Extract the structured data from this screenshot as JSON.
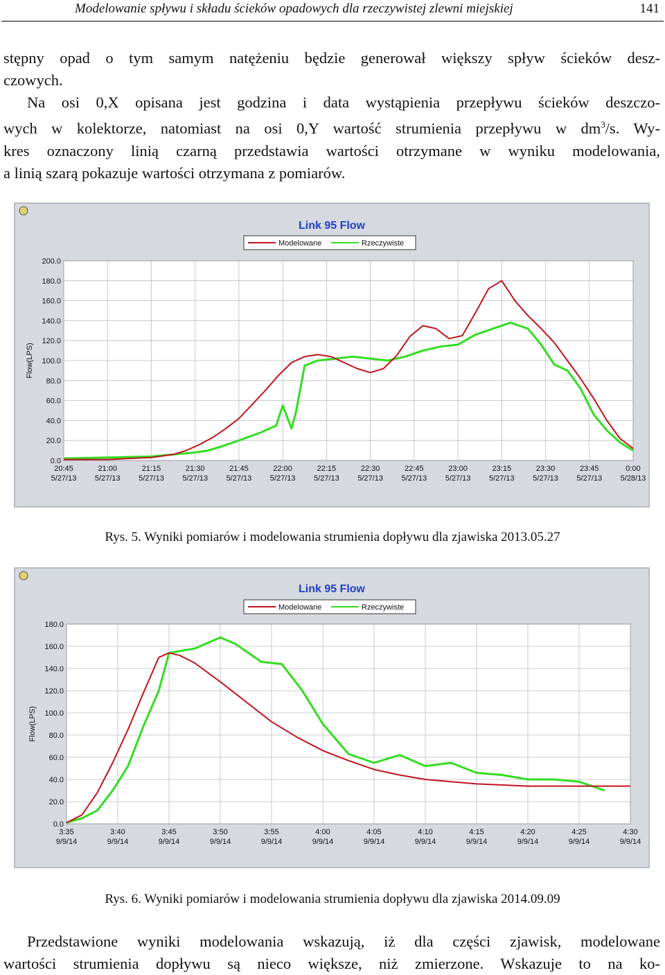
{
  "header": {
    "running_title": "Modelowanie spływu i składu ścieków opadowych dla rzeczywistej zlewni miejskiej",
    "page_number": "141"
  },
  "intro": {
    "lines": [
      "stępny opad o tym samym natężeniu będzie generował większy spływ ścieków desz-",
      "czowych."
    ],
    "para2_lines": [
      "Na osi 0,X opisana jest godzina i data wystąpienia przepływu ścieków deszczo-",
      "wych w kolektorze, natomiast na osi 0,Y wartość strumienia przepływu w dm",
      "/s. Wy-",
      "kres oznaczony linią czarną przedstawia wartości otrzymane w wyniku modelowania,",
      "a linią szarą pokazuje wartości otrzymana z pomiarów."
    ],
    "superscript": "3"
  },
  "figures": [
    {
      "caption": "Rys. 5. Wyniki pomiarów i modelowania strumienia dopływu dla zjawiska 2013.05.27",
      "chart_data": {
        "type": "line",
        "title": "Link 95 Flow",
        "ylabel": "Flow(LPS)",
        "xlabel": "",
        "ylim": [
          0,
          200
        ],
        "yticks": [
          "0.0",
          "20.0",
          "40.0",
          "60.0",
          "80.0",
          "100.0",
          "120.0",
          "140.0",
          "160.0",
          "180.0",
          "200.0"
        ],
        "xticks": [
          {
            "time": "20:45",
            "date": "5/27/13"
          },
          {
            "time": "21:00",
            "date": "5/27/13"
          },
          {
            "time": "21:15",
            "date": "5/27/13"
          },
          {
            "time": "21:30",
            "date": "5/27/13"
          },
          {
            "time": "21:45",
            "date": "5/27/13"
          },
          {
            "time": "22:00",
            "date": "5/27/13"
          },
          {
            "time": "22:15",
            "date": "5/27/13"
          },
          {
            "time": "22:30",
            "date": "5/27/13"
          },
          {
            "time": "22:45",
            "date": "5/27/13"
          },
          {
            "time": "23:00",
            "date": "5/27/13"
          },
          {
            "time": "23:15",
            "date": "5/27/13"
          },
          {
            "time": "23:30",
            "date": "5/27/13"
          },
          {
            "time": "23:45",
            "date": "5/27/13"
          },
          {
            "time": "0:00",
            "date": "5/28/13"
          }
        ],
        "legend_position": "top-center",
        "grid": true,
        "series": [
          {
            "name": "Modelowane",
            "color": "#c0141c",
            "x": [
              0.0,
              0.5,
              1.0,
              1.5,
              2.0,
              2.5,
              2.8,
              3.1,
              3.4,
              3.7,
              4.0,
              4.3,
              4.6,
              4.9,
              5.2,
              5.5,
              5.8,
              6.1,
              6.4,
              6.7,
              7.0,
              7.3,
              7.6,
              7.9,
              8.2,
              8.5,
              8.8,
              9.1,
              9.4,
              9.7,
              10.0,
              10.3,
              10.6,
              10.9,
              11.2,
              11.5,
              11.8,
              12.1,
              12.4,
              12.7,
              13.0
            ],
            "y": [
              1,
              1,
              1,
              2,
              3,
              6,
              10,
              16,
              23,
              32,
              42,
              56,
              70,
              85,
              98,
              104,
              106,
              104,
              98,
              92,
              88,
              92,
              105,
              124,
              135,
              132,
              122,
              125,
              148,
              172,
              180,
              160,
              145,
              132,
              118,
              100,
              82,
              62,
              40,
              22,
              12
            ]
          },
          {
            "name": "Rzeczywiste",
            "color": "#33dd22",
            "x": [
              0.0,
              1.0,
              2.0,
              2.5,
              3.0,
              3.3,
              3.6,
              4.0,
              4.5,
              4.85,
              5.0,
              5.2,
              5.3,
              5.5,
              5.8,
              6.2,
              6.6,
              7.0,
              7.4,
              7.8,
              8.2,
              8.6,
              9.0,
              9.4,
              9.8,
              10.2,
              10.6,
              10.9,
              11.2,
              11.5,
              11.8,
              12.1,
              12.4,
              12.7,
              13.0
            ],
            "y": [
              2,
              3,
              4,
              6,
              8,
              10,
              14,
              20,
              28,
              35,
              55,
              32,
              48,
              95,
              100,
              102,
              104,
              102,
              100,
              104,
              110,
              114,
              116,
              126,
              132,
              138,
              132,
              116,
              96,
              90,
              72,
              46,
              30,
              18,
              10
            ]
          }
        ]
      }
    },
    {
      "caption": "Rys. 6. Wyniki pomiarów i modelowania strumienia dopływu dla zjawiska 2014.09.09",
      "chart_data": {
        "type": "line",
        "title": "Link 95 Flow",
        "ylabel": "Flow(LPS)",
        "xlabel": "",
        "ylim": [
          0,
          180
        ],
        "yticks": [
          "0.0",
          "20.0",
          "40.0",
          "60.0",
          "80.0",
          "100.0",
          "120.0",
          "140.0",
          "160.0",
          "180.0"
        ],
        "xticks": [
          {
            "time": "3:35",
            "date": "9/9/14"
          },
          {
            "time": "3:40",
            "date": "9/9/14"
          },
          {
            "time": "3:45",
            "date": "9/9/14"
          },
          {
            "time": "3:50",
            "date": "9/9/14"
          },
          {
            "time": "3:55",
            "date": "9/9/14"
          },
          {
            "time": "4:00",
            "date": "9/9/14"
          },
          {
            "time": "4:05",
            "date": "9/9/14"
          },
          {
            "time": "4:10",
            "date": "9/9/14"
          },
          {
            "time": "4:15",
            "date": "9/9/14"
          },
          {
            "time": "4:20",
            "date": "9/9/14"
          },
          {
            "time": "4:25",
            "date": "9/9/14"
          },
          {
            "time": "4:30",
            "date": "9/9/14"
          }
        ],
        "legend_position": "top-center",
        "grid": true,
        "series": [
          {
            "name": "Modelowane",
            "color": "#c0141c",
            "x": [
              0.0,
              0.3,
              0.6,
              0.9,
              1.2,
              1.5,
              1.8,
              2.0,
              2.2,
              2.5,
              3.0,
              3.5,
              4.0,
              4.5,
              5.0,
              5.5,
              6.0,
              6.5,
              7.0,
              7.5,
              8.0,
              8.5,
              9.0,
              9.5,
              10.0,
              10.5,
              11.0
            ],
            "y": [
              1,
              8,
              28,
              55,
              85,
              118,
              150,
              154,
              152,
              145,
              128,
              110,
              92,
              78,
              66,
              57,
              49,
              44,
              40,
              38,
              36,
              35,
              34,
              34,
              34,
              34,
              34
            ]
          },
          {
            "name": "Rzeczywiste",
            "color": "#33dd22",
            "x": [
              0.0,
              0.3,
              0.6,
              0.9,
              1.2,
              1.5,
              1.8,
              2.0,
              2.5,
              3.0,
              3.3,
              3.8,
              4.2,
              4.6,
              5.0,
              5.5,
              6.0,
              6.5,
              7.0,
              7.5,
              8.0,
              8.5,
              9.0,
              9.5,
              10.0,
              10.5
            ],
            "y": [
              1,
              5,
              12,
              30,
              52,
              88,
              120,
              154,
              158,
              168,
              162,
              146,
              144,
              120,
              90,
              63,
              55,
              62,
              52,
              55,
              46,
              44,
              40,
              40,
              38,
              30
            ]
          }
        ]
      }
    }
  ],
  "outro": {
    "lines": [
      "Przedstawione wyniki modelowania wskazują, iż dla części zjawisk, modelowane",
      "wartości strumienia dopływu są nieco większe, niż zmierzone. Wskazuje to na ko-"
    ]
  }
}
